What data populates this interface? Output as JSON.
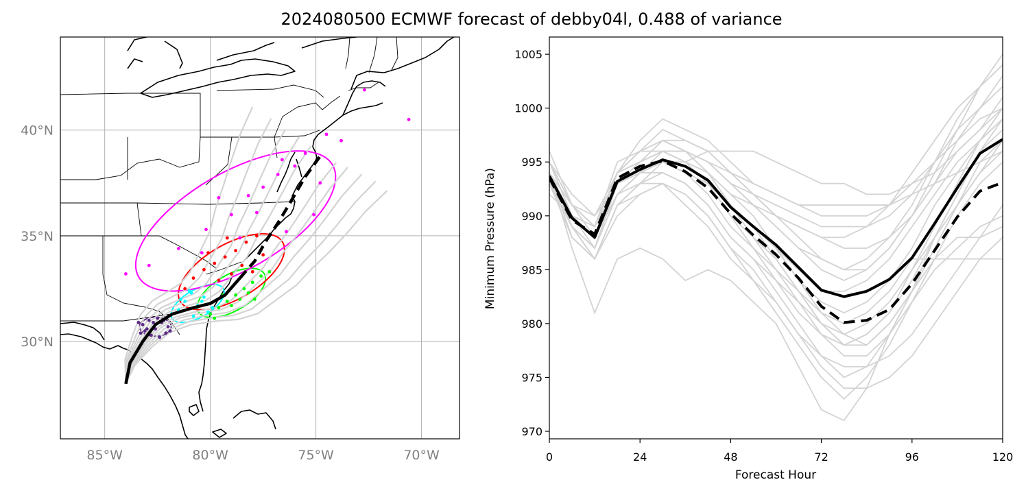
{
  "title": "2024080500 ECMWF forecast of debby04l, 0.488 of variance",
  "chart_data": [
    {
      "type": "scatter",
      "chart": "map",
      "title": "",
      "x_ticks": [
        -85,
        -80,
        -75,
        -70
      ],
      "x_tick_labels": [
        "85°W",
        "80°W",
        "75°W",
        "70°W"
      ],
      "y_ticks": [
        30,
        35,
        40
      ],
      "y_tick_labels": [
        "30°N",
        "35°N",
        "40°N"
      ],
      "xlim": [
        -87.1,
        -68.2
      ],
      "ylim": [
        25.4,
        44.4
      ],
      "grid": true,
      "colors": {
        "ensemble_track": "#d3d3d3",
        "mean_track": "#000000",
        "coast": "#000000",
        "grid": "#b0b0b0"
      },
      "mean_track": [
        [
          -84.0,
          28.0
        ],
        [
          -83.8,
          29.0
        ],
        [
          -83.2,
          30.0
        ],
        [
          -82.6,
          30.8
        ],
        [
          -81.8,
          31.3
        ],
        [
          -80.8,
          31.6
        ],
        [
          -80.0,
          31.8
        ],
        [
          -79.3,
          32.2
        ],
        [
          -78.6,
          33.0
        ],
        [
          -77.9,
          33.8
        ],
        [
          -77.4,
          34.7
        ],
        [
          -76.8,
          35.6
        ],
        [
          -76.2,
          36.6
        ],
        [
          -75.5,
          37.8
        ],
        [
          -74.7,
          38.9
        ]
      ],
      "ensemble_spread": [
        {
          "lon_offset": -0.25,
          "lat_offset": 0.15
        },
        {
          "lon_offset": 0.3,
          "lat_offset": -0.2
        },
        {
          "lon_offset": -0.5,
          "lat_offset": 0.35
        },
        {
          "lon_offset": 0.55,
          "lat_offset": -0.3
        },
        {
          "lon_offset": -0.8,
          "lat_offset": 0.5
        },
        {
          "lon_offset": 0.85,
          "lat_offset": -0.45
        },
        {
          "lon_offset": -1.1,
          "lat_offset": 0.75
        },
        {
          "lon_offset": 1.15,
          "lat_offset": -0.6
        },
        {
          "lon_offset": -1.5,
          "lat_offset": 1.0
        },
        {
          "lon_offset": 1.4,
          "lat_offset": -0.8
        }
      ],
      "ellipses": [
        {
          "color": "#5b2a86",
          "center": [
            -82.6,
            30.7
          ],
          "rx_deg": 0.75,
          "ry_deg": 0.45,
          "rotation": 0
        },
        {
          "color": "#00ffff",
          "center": [
            -80.6,
            31.8
          ],
          "rx_deg": 1.4,
          "ry_deg": 0.65,
          "rotation": -30
        },
        {
          "color": "#00ff00",
          "center": [
            -79.0,
            32.3
          ],
          "rx_deg": 1.8,
          "ry_deg": 0.85,
          "rotation": -30
        },
        {
          "color": "#ff0000",
          "center": [
            -79.0,
            33.3
          ],
          "rx_deg": 2.8,
          "ry_deg": 1.3,
          "rotation": -30
        },
        {
          "color": "#ff00ff",
          "center": [
            -78.8,
            35.7
          ],
          "rx_deg": 5.3,
          "ry_deg": 2.3,
          "rotation": -30
        }
      ],
      "points": [
        {
          "color": "#5b2a86",
          "lon": [
            -83.4,
            -83.1,
            -82.9,
            -82.6,
            -82.3,
            -82.1,
            -82.8,
            -83.2,
            -82.5,
            -82.0,
            -82.4,
            -83.0,
            -82.7,
            -81.9,
            -83.3,
            -82.2
          ],
          "lat": [
            30.9,
            30.5,
            31.0,
            30.6,
            30.9,
            30.4,
            30.3,
            30.8,
            31.1,
            30.7,
            30.2,
            30.6,
            30.9,
            30.5,
            30.4,
            31.0
          ]
        },
        {
          "color": "#00ffff",
          "lon": [
            -81.5,
            -81.2,
            -80.9,
            -80.6,
            -80.3,
            -80.1,
            -80.8,
            -81.0,
            -80.4,
            -79.9,
            -80.7,
            -81.4
          ],
          "lat": [
            31.5,
            31.9,
            32.3,
            31.7,
            32.1,
            31.4,
            31.2,
            32.4,
            31.9,
            31.6,
            31.6,
            32.0
          ]
        },
        {
          "color": "#00ff00",
          "lon": [
            -80.0,
            -79.6,
            -79.2,
            -78.8,
            -78.4,
            -78.0,
            -77.6,
            -79.0,
            -78.6,
            -79.8,
            -78.2,
            -77.9,
            -77.2,
            -79.4
          ],
          "lat": [
            31.3,
            31.6,
            31.9,
            32.2,
            32.5,
            32.8,
            33.1,
            31.7,
            32.0,
            31.1,
            32.3,
            32.0,
            33.3,
            32.2
          ]
        },
        {
          "color": "#ff0000",
          "lon": [
            -81.2,
            -80.8,
            -80.3,
            -79.8,
            -79.3,
            -78.8,
            -78.3,
            -77.8,
            -79.0,
            -79.6,
            -78.5,
            -80.1,
            -77.5,
            -78.0,
            -79.2
          ],
          "lat": [
            32.5,
            33.0,
            33.4,
            33.7,
            34.0,
            34.3,
            34.7,
            35.0,
            33.2,
            32.9,
            33.6,
            34.2,
            34.1,
            33.3,
            34.9
          ]
        },
        {
          "color": "#ff00ff",
          "lon": [
            -84.0,
            -82.9,
            -81.5,
            -80.2,
            -79.0,
            -78.2,
            -77.5,
            -76.8,
            -76.0,
            -75.5,
            -74.5,
            -73.8,
            -72.7,
            -70.6,
            -75.1,
            -76.4,
            -77.8,
            -79.6,
            -80.4,
            -74.8,
            -76.6,
            -78.6
          ],
          "lat": [
            33.2,
            33.6,
            34.4,
            35.3,
            36.0,
            36.9,
            37.3,
            37.9,
            38.3,
            38.9,
            39.8,
            39.5,
            41.9,
            40.5,
            36.0,
            35.2,
            36.1,
            36.8,
            34.2,
            37.5,
            38.6,
            34.9
          ]
        }
      ]
    },
    {
      "type": "line",
      "title": "",
      "xlabel": "Forecast Hour",
      "ylabel": "Minimum Pressure (hPa)",
      "xlim": [
        0,
        120
      ],
      "ylim": [
        969.3,
        1006.6
      ],
      "x_ticks": [
        0,
        24,
        48,
        72,
        96,
        120
      ],
      "y_ticks": [
        970,
        975,
        980,
        985,
        990,
        995,
        1000,
        1005
      ],
      "grid": false,
      "colors": {
        "members": "#d3d3d3",
        "solid": "#000000",
        "dashed": "#000000"
      },
      "x": [
        0,
        6,
        12,
        18,
        24,
        30,
        36,
        42,
        48,
        54,
        60,
        66,
        72,
        78,
        84,
        90,
        96,
        102,
        108,
        114,
        120
      ],
      "series": [
        {
          "style": "solid",
          "values": [
            993.7,
            989.8,
            988.0,
            993.2,
            994.3,
            995.2,
            994.6,
            993.3,
            990.8,
            989.0,
            987.3,
            985.2,
            983.1,
            982.5,
            983.0,
            984.1,
            986.1,
            989.3,
            992.6,
            995.8,
            997.1
          ]
        },
        {
          "style": "dashed",
          "values": [
            993.5,
            989.6,
            988.3,
            993.5,
            994.6,
            995.1,
            994.1,
            992.6,
            990.2,
            988.2,
            986.4,
            984.2,
            981.6,
            980.1,
            980.3,
            981.3,
            983.7,
            986.8,
            989.9,
            992.3,
            993.1
          ]
        },
        {
          "style": "member",
          "values": [
            996.0,
            991.0,
            989.0,
            995.0,
            996.0,
            997.0,
            996.0,
            995.0,
            993.0,
            991.0,
            989.0,
            987.0,
            985.0,
            984.0,
            985.0,
            987.0,
            990.0,
            994.0,
            998.0,
            1002.0,
            1005.0
          ]
        },
        {
          "style": "member",
          "values": [
            995.0,
            992.0,
            990.0,
            994.0,
            997.0,
            999.0,
            998.0,
            997.0,
            995.0,
            993.0,
            992.0,
            991.0,
            990.0,
            990.0,
            990.0,
            991.0,
            993.0,
            995.0,
            997.0,
            999.0,
            1000.0
          ]
        },
        {
          "style": "member",
          "values": [
            993.0,
            988.0,
            986.0,
            991.0,
            993.0,
            994.0,
            993.0,
            991.0,
            988.0,
            986.0,
            983.0,
            980.0,
            977.0,
            975.0,
            976.0,
            979.0,
            983.0,
            988.0,
            992.0,
            996.0,
            999.0
          ]
        },
        {
          "style": "member",
          "values": [
            994.0,
            987.0,
            981.0,
            986.0,
            987.0,
            986.0,
            984.0,
            985.0,
            984.0,
            982.0,
            980.0,
            976.0,
            972.0,
            971.0,
            974.0,
            979.0,
            983.0,
            986.0,
            988.0,
            988.0,
            989.0
          ]
        },
        {
          "style": "member",
          "values": [
            992.0,
            990.0,
            989.0,
            994.0,
            995.0,
            996.0,
            995.0,
            994.0,
            992.0,
            991.0,
            990.0,
            989.0,
            988.0,
            987.0,
            987.0,
            988.0,
            990.0,
            993.0,
            996.0,
            998.0,
            1000.0
          ]
        },
        {
          "style": "member",
          "values": [
            993.0,
            989.0,
            987.0,
            993.0,
            995.0,
            997.0,
            996.0,
            994.0,
            991.0,
            988.0,
            985.0,
            982.0,
            979.0,
            977.0,
            977.0,
            979.0,
            982.0,
            986.0,
            990.0,
            993.0,
            995.0
          ]
        },
        {
          "style": "member",
          "values": [
            994.0,
            991.0,
            990.0,
            993.0,
            994.0,
            995.0,
            995.0,
            996.0,
            996.0,
            996.0,
            995.0,
            994.0,
            993.0,
            993.0,
            992.0,
            992.0,
            993.0,
            994.0,
            996.0,
            998.0,
            1001.0
          ]
        },
        {
          "style": "member",
          "values": [
            995.0,
            990.0,
            988.0,
            992.0,
            993.0,
            993.0,
            992.0,
            990.0,
            987.0,
            985.0,
            982.0,
            979.0,
            976.0,
            974.0,
            974.0,
            975.0,
            977.0,
            980.0,
            983.0,
            986.0,
            988.0
          ]
        },
        {
          "style": "member",
          "values": [
            993.0,
            990.0,
            988.0,
            994.0,
            996.0,
            998.0,
            997.0,
            996.0,
            994.0,
            992.0,
            990.0,
            988.0,
            986.0,
            985.0,
            986.0,
            988.0,
            991.0,
            995.0,
            999.0,
            1002.0,
            1004.0
          ]
        },
        {
          "style": "member",
          "values": [
            994.0,
            988.0,
            986.0,
            990.0,
            992.0,
            993.0,
            991.0,
            989.0,
            986.0,
            984.0,
            981.0,
            978.0,
            975.0,
            973.0,
            975.0,
            978.0,
            982.0,
            985.0,
            987.0,
            989.0,
            990.0
          ]
        },
        {
          "style": "member",
          "values": [
            993.0,
            989.0,
            987.0,
            993.0,
            994.0,
            995.0,
            994.0,
            993.0,
            990.0,
            988.0,
            986.0,
            983.0,
            980.0,
            978.0,
            979.0,
            981.0,
            984.0,
            988.0,
            992.0,
            996.0,
            998.0
          ]
        },
        {
          "style": "member",
          "values": [
            995.0,
            991.0,
            989.0,
            994.0,
            995.0,
            996.0,
            996.0,
            995.0,
            993.0,
            992.0,
            991.0,
            990.0,
            989.0,
            989.0,
            989.0,
            990.0,
            992.0,
            995.0,
            998.0,
            1000.0,
            1002.0
          ]
        },
        {
          "style": "member",
          "values": [
            994.0,
            990.0,
            988.0,
            992.0,
            994.0,
            995.0,
            994.0,
            992.0,
            989.0,
            987.0,
            985.0,
            983.0,
            981.0,
            980.0,
            981.0,
            983.0,
            986.0,
            986.0,
            986.0,
            986.0,
            986.0
          ]
        },
        {
          "style": "member",
          "values": [
            993.0,
            989.0,
            986.0,
            991.0,
            993.0,
            995.0,
            995.0,
            994.0,
            992.0,
            990.0,
            987.0,
            984.0,
            981.0,
            979.0,
            978.0,
            980.0,
            983.0,
            987.0,
            991.0,
            995.0,
            997.0
          ]
        },
        {
          "style": "member",
          "values": [
            994.0,
            990.0,
            989.0,
            994.0,
            996.0,
            997.0,
            996.0,
            994.0,
            991.0,
            989.0,
            987.0,
            985.0,
            983.0,
            983.0,
            984.0,
            986.0,
            989.0,
            992.0,
            995.0,
            997.0,
            999.0
          ]
        },
        {
          "style": "member",
          "values": [
            995.0,
            990.0,
            987.0,
            992.0,
            994.0,
            996.0,
            995.0,
            993.0,
            991.0,
            989.0,
            987.0,
            984.0,
            982.0,
            981.0,
            982.0,
            984.0,
            987.0,
            991.0,
            994.0,
            997.0,
            999.0
          ]
        },
        {
          "style": "member",
          "values": [
            993.0,
            990.0,
            988.0,
            993.0,
            995.0,
            996.0,
            996.0,
            995.0,
            994.0,
            993.0,
            992.0,
            991.0,
            991.0,
            991.0,
            991.0,
            991.0,
            992.0,
            993.0,
            994.0,
            995.0,
            996.0
          ]
        },
        {
          "style": "member",
          "values": [
            994.0,
            989.0,
            986.0,
            991.0,
            992.0,
            993.0,
            992.0,
            990.0,
            987.0,
            984.0,
            982.0,
            979.0,
            977.0,
            976.0,
            976.0,
            977.0,
            979.0,
            982.0,
            985.0,
            988.0,
            991.0
          ]
        },
        {
          "style": "member",
          "values": [
            994.0,
            991.0,
            989.0,
            993.0,
            995.0,
            996.0,
            996.0,
            995.0,
            993.0,
            991.0,
            989.0,
            987.0,
            986.0,
            985.0,
            985.0,
            987.0,
            990.0,
            993.0,
            997.0,
            1000.0,
            1003.0
          ]
        },
        {
          "style": "member",
          "values": [
            993.0,
            990.0,
            988.0,
            992.0,
            994.0,
            994.0,
            993.0,
            991.0,
            988.0,
            986.0,
            984.0,
            982.0,
            980.0,
            979.0,
            980.0,
            982.0,
            985.0,
            988.0,
            991.0,
            994.0,
            996.0
          ]
        },
        {
          "style": "member",
          "values": [
            995.0,
            991.0,
            988.0,
            993.0,
            995.0,
            997.0,
            997.0,
            996.0,
            994.0,
            992.0,
            990.0,
            989.0,
            988.0,
            988.0,
            989.0,
            991.0,
            994.0,
            997.0,
            1000.0,
            1002.0,
            1004.0
          ]
        },
        {
          "style": "member",
          "values": [
            994.0,
            989.0,
            987.0,
            992.0,
            994.0,
            995.0,
            994.0,
            993.0,
            991.0,
            989.0,
            986.0,
            983.0,
            980.0,
            978.0,
            978.0,
            980.0,
            983.0,
            987.0,
            991.0,
            994.0,
            997.0
          ]
        },
        {
          "style": "member",
          "values": [
            993.0,
            990.0,
            989.0,
            994.0,
            996.0,
            996.0,
            995.0,
            993.0,
            990.0,
            987.0,
            984.0,
            981.0,
            979.0,
            978.0,
            979.0,
            981.0,
            985.0,
            989.0,
            993.0,
            997.0,
            1000.0
          ]
        }
      ]
    }
  ]
}
